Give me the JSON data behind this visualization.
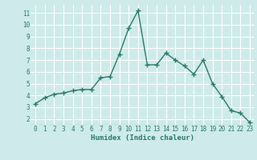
{
  "x": [
    0,
    1,
    2,
    3,
    4,
    5,
    6,
    7,
    8,
    9,
    10,
    11,
    12,
    13,
    14,
    15,
    16,
    17,
    18,
    19,
    20,
    21,
    22,
    23
  ],
  "y": [
    3.3,
    3.8,
    4.1,
    4.2,
    4.4,
    4.5,
    4.5,
    5.5,
    5.6,
    7.5,
    9.7,
    11.2,
    6.6,
    6.6,
    7.6,
    7.0,
    6.5,
    5.8,
    7.0,
    5.0,
    3.9,
    2.7,
    2.5,
    1.7
  ],
  "xlabel": "Humidex (Indice chaleur)",
  "ylim": [
    1.5,
    11.7
  ],
  "xlim": [
    -0.5,
    23.5
  ],
  "yticks": [
    2,
    3,
    4,
    5,
    6,
    7,
    8,
    9,
    10,
    11
  ],
  "xticks": [
    0,
    1,
    2,
    3,
    4,
    5,
    6,
    7,
    8,
    9,
    10,
    11,
    12,
    13,
    14,
    15,
    16,
    17,
    18,
    19,
    20,
    21,
    22,
    23
  ],
  "line_color": "#2a7a6a",
  "marker_color": "#2a7a6a",
  "bg_color": "#ceeaea",
  "grid_color": "#ffffff",
  "tick_color": "#2a7a6a",
  "label_color": "#2a7a6a"
}
